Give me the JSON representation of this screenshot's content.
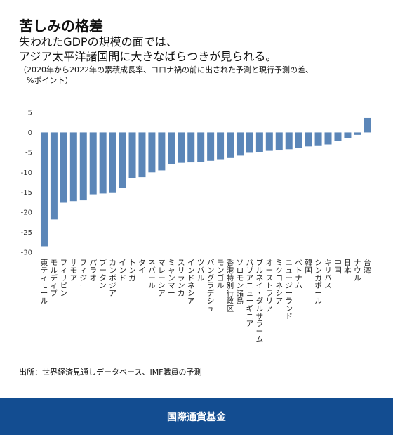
{
  "title": "苦しみの格差",
  "subtitle_lines": [
    "失われたGDPの規模の面では、",
    "アジア太平洋諸国間に大きなばらつきが見られる。"
  ],
  "note_lines": [
    "（2020年から2022年の累積成長率、コロナ禍の前に出された予測と現行予測の差、",
    "%ポイント）"
  ],
  "source": "出所：世界経済見通しデータベース、IMF職員の予測",
  "footer": "国際通貨基金",
  "colors": {
    "bar": "#5b86b8",
    "footer": "#134d91"
  },
  "chart_data": {
    "type": "bar",
    "title": "",
    "xlabel": "",
    "ylabel": "",
    "ylim": [
      -30,
      5
    ],
    "yticks": [
      5,
      0,
      -5,
      -10,
      -15,
      -20,
      -25,
      -30
    ],
    "grid": false,
    "categories": [
      "東ティモール",
      "モルディブ",
      "フィリピン",
      "サモア",
      "フィジー",
      "パラオ",
      "ブータン",
      "カンボジア",
      "インド",
      "トンガ",
      "タイ",
      "ネパール",
      "マレーシア",
      "ミャンマー",
      "スリランカ",
      "インドネシア",
      "ツバル",
      "バングラデシュ",
      "モンゴル",
      "香港特別行政区",
      "ソロモン諸島",
      "パプアニューギニア",
      "ブルネイ・ダルサラーム",
      "オーストラリア",
      "ミクロネシア",
      "ニュージーランド",
      "ベトナム",
      "韓国",
      "シンガポール",
      "キリバス",
      "中国",
      "日本",
      "ナウル",
      "台湾"
    ],
    "values": [
      -28.5,
      -21.8,
      -17.6,
      -17.2,
      -17.0,
      -15.5,
      -15.3,
      -15.0,
      -13.9,
      -11.4,
      -11.2,
      -10.0,
      -9.5,
      -7.9,
      -7.6,
      -7.5,
      -7.4,
      -7.1,
      -6.7,
      -6.4,
      -5.8,
      -5.1,
      -4.9,
      -4.6,
      -4.5,
      -4.2,
      -3.8,
      -3.5,
      -3.4,
      -3.0,
      -2.1,
      -1.5,
      -0.6,
      3.6
    ]
  }
}
